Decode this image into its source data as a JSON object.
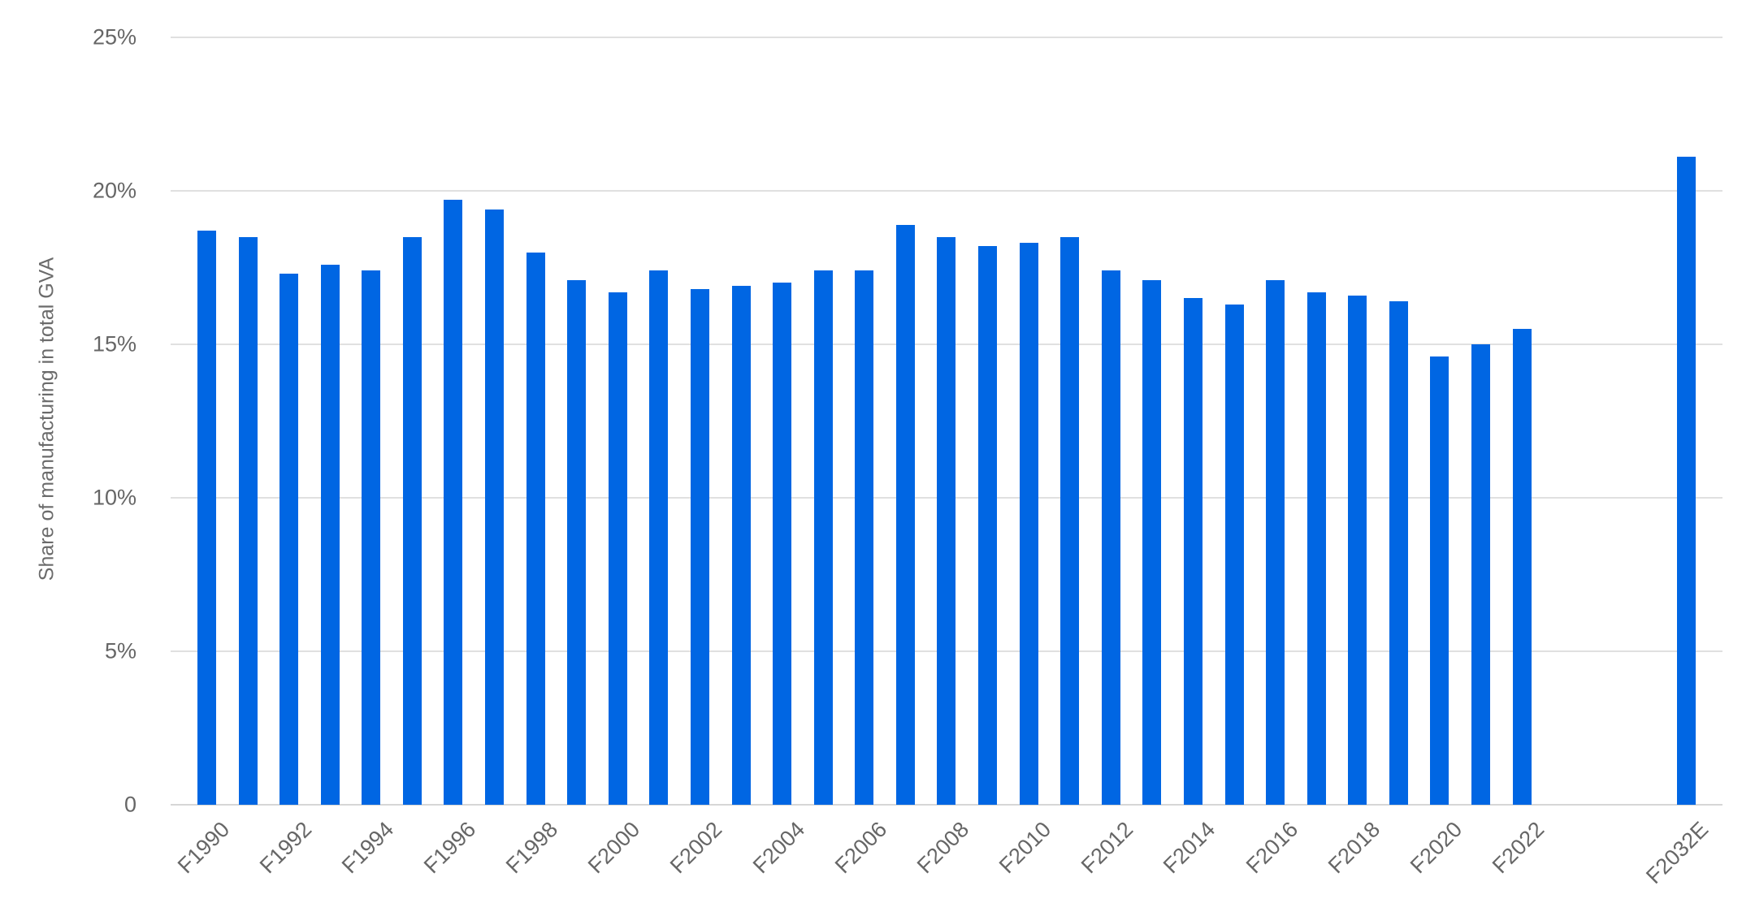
{
  "chart_data": {
    "type": "bar",
    "title": "",
    "xlabel": "",
    "ylabel": "Share of manufacturing in total GVA",
    "ylim": [
      0,
      25
    ],
    "y_ticks": [
      "0",
      "5%",
      "10%",
      "15%",
      "20%",
      "25%"
    ],
    "y_tick_values": [
      0,
      5,
      10,
      15,
      20,
      25
    ],
    "grid": true,
    "legend": null,
    "bar_color": "#0066E3",
    "categories": [
      "F1990",
      "F1991",
      "F1992",
      "F1993",
      "F1994",
      "F1995",
      "F1996",
      "F1997",
      "F1998",
      "F1999",
      "F2000",
      "F2001",
      "F2002",
      "F2003",
      "F2004",
      "F2005",
      "F2006",
      "F2007",
      "F2008",
      "F2009",
      "F2010",
      "F2011",
      "F2012",
      "F2013",
      "F2014",
      "F2015",
      "F2016",
      "F2017",
      "F2018",
      "F2019",
      "F2020",
      "F2021",
      "F2022",
      "",
      "",
      "",
      "F2032E"
    ],
    "values": [
      18.7,
      18.5,
      17.3,
      17.6,
      17.4,
      18.5,
      19.7,
      19.4,
      18.0,
      17.1,
      16.7,
      17.4,
      16.8,
      16.9,
      17.0,
      17.4,
      17.4,
      18.9,
      18.5,
      18.2,
      18.3,
      18.5,
      17.4,
      17.1,
      16.5,
      16.3,
      17.1,
      16.7,
      16.6,
      16.4,
      14.6,
      15.0,
      15.5,
      null,
      null,
      null,
      21.1
    ],
    "x_tick_labels": [
      "F1990",
      "F1992",
      "F1994",
      "F1996",
      "F1998",
      "F2000",
      "F2002",
      "F2004",
      "F2006",
      "F2008",
      "F2010",
      "F2012",
      "F2014",
      "F2016",
      "F2018",
      "F2020",
      "F2022",
      "F2032E"
    ],
    "x_tick_indices": [
      0,
      2,
      4,
      6,
      8,
      10,
      12,
      14,
      16,
      18,
      20,
      22,
      24,
      26,
      28,
      30,
      32,
      36
    ]
  },
  "colors": {
    "bar": "#0066E3",
    "grid": "#e0e0e0",
    "text": "#666666"
  }
}
